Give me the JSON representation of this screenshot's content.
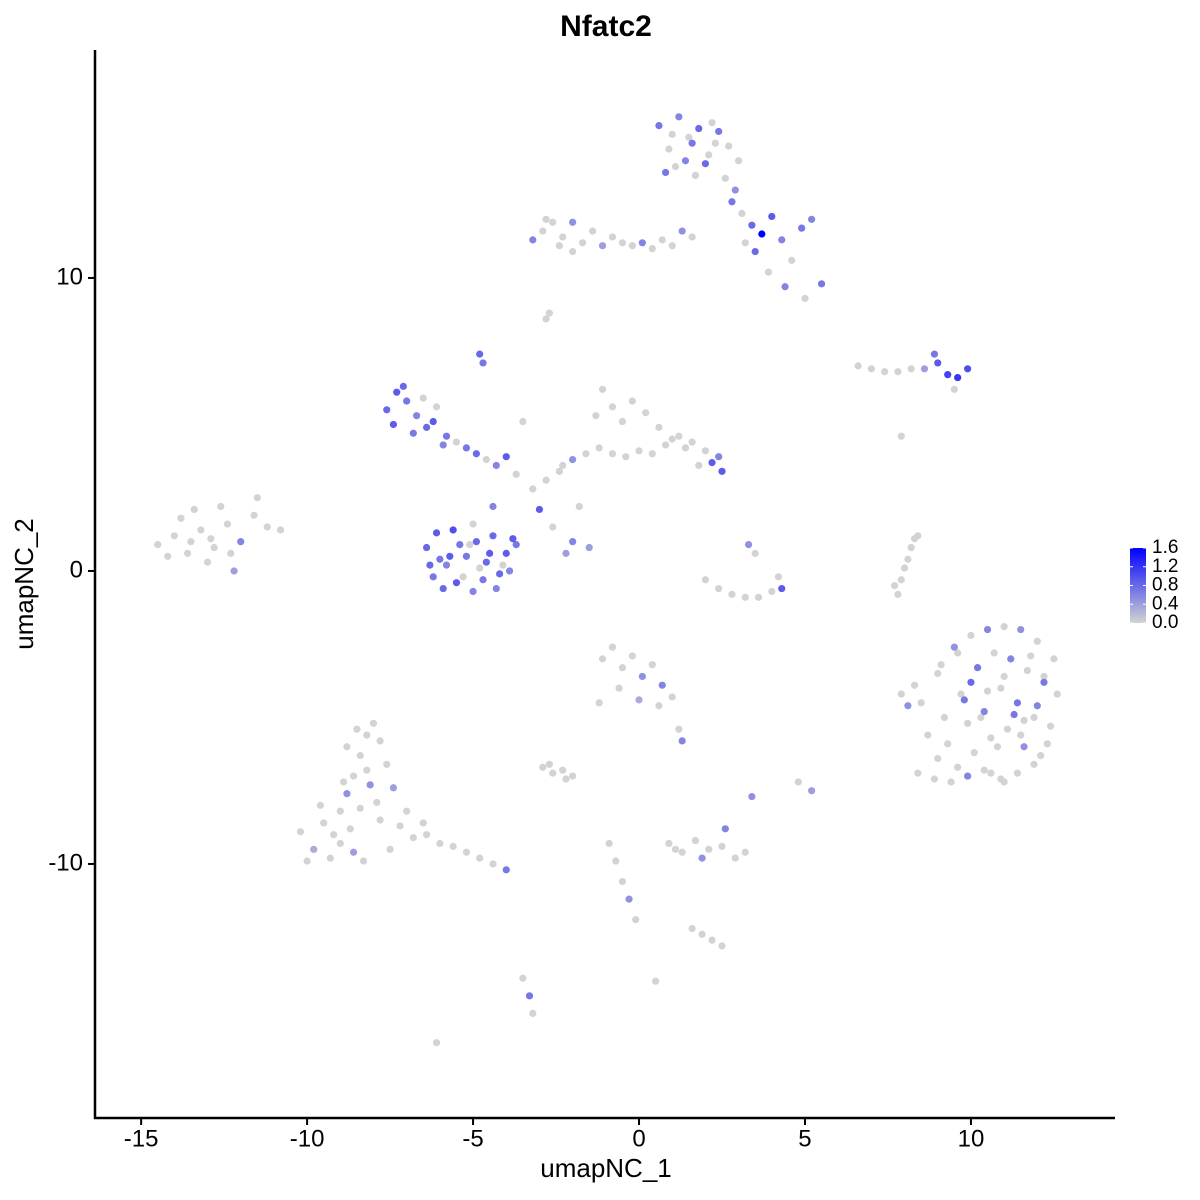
{
  "chart_data": {
    "type": "scatter",
    "title": "Nfatc2",
    "x_label": "umapNC_1",
    "y_label": "umapNC_2",
    "xlim": [
      -16.39,
      14.34
    ],
    "ylim": [
      -18.67,
      17.78
    ],
    "xticks": [
      -15,
      -10,
      -5,
      0,
      5,
      10
    ],
    "yticks": [
      -10,
      0,
      10
    ],
    "color_low": "#d3d3d3",
    "color_high": "#0000ff",
    "colorbar_lim": [
      0,
      1.6
    ],
    "colorbar_ticks": [
      {
        "value": 0,
        "label": "0.0"
      },
      0.4,
      0.8,
      1.2,
      1.6
    ],
    "x": [
      -14.5,
      -14.0,
      -13.6,
      -13.2,
      -12.8,
      -12.4,
      -12.0,
      -11.6,
      -11.2,
      -10.8,
      -14.2,
      -13.8,
      -13.4,
      -13.0,
      -12.6,
      -12.2,
      -13.5,
      -12.9,
      -12.3,
      -11.5,
      -10.2,
      -9.8,
      -9.5,
      -9.2,
      -9.0,
      -8.8,
      -8.6,
      -8.4,
      -8.2,
      -8.0,
      -7.8,
      -7.6,
      -7.4,
      -9.6,
      -9.3,
      -9.0,
      -8.7,
      -8.4,
      -8.1,
      -7.8,
      -8.8,
      -8.5,
      -8.2,
      -7.9,
      -8.9,
      -8.6,
      -8.3,
      -7.2,
      -6.8,
      -6.4,
      -6.0,
      -5.6,
      -5.2,
      -4.8,
      -4.4,
      -4.0,
      -7.5,
      -7.0,
      -6.5,
      -10.0,
      -6.4,
      -6.1,
      -5.8,
      -5.5,
      -5.2,
      -4.9,
      -4.6,
      -4.3,
      -4.0,
      -3.7,
      -6.2,
      -5.9,
      -5.6,
      -5.3,
      -5.0,
      -4.7,
      -4.4,
      -4.1,
      -3.8,
      -6.0,
      -5.4,
      -4.8,
      -4.2,
      -5.7,
      -5.1,
      -4.5,
      -3.9,
      -6.3,
      -4.4,
      -5.0,
      -7.6,
      -7.3,
      -7.0,
      -6.7,
      -6.4,
      -6.1,
      -5.8,
      -5.5,
      -7.4,
      -7.1,
      -6.8,
      -6.5,
      -6.2,
      -5.9,
      -5.2,
      -4.9,
      -4.6,
      -4.3,
      -4.0,
      -3.7,
      -3.2,
      -2.8,
      -2.4,
      -2.0,
      -1.6,
      -1.2,
      -0.8,
      -0.4,
      0.0,
      0.4,
      0.8,
      1.2,
      1.6,
      2.0,
      2.4,
      -1.1,
      -0.8,
      -0.5,
      -0.2,
      0.2,
      0.6,
      1.0,
      1.4,
      1.8,
      2.2,
      2.5,
      -3.0,
      -2.6,
      -2.2,
      -1.8,
      -3.5,
      -2.0,
      -1.5,
      -2.3,
      -1.3,
      0.6,
      0.9,
      1.2,
      1.5,
      1.8,
      2.1,
      2.4,
      2.7,
      3.0,
      0.8,
      1.1,
      1.4,
      1.7,
      2.0,
      2.3,
      2.6,
      2.9,
      1.0,
      1.6,
      2.2,
      2.8,
      3.1,
      3.4,
      3.7,
      4.0,
      4.3,
      4.6,
      4.9,
      5.2,
      3.5,
      3.9,
      4.4,
      5.0,
      5.5,
      3.2,
      -3.2,
      -2.9,
      -2.6,
      -2.3,
      -2.0,
      -1.7,
      -1.4,
      -1.1,
      -0.8,
      -0.5,
      -0.2,
      0.1,
      0.4,
      0.7,
      1.0,
      1.3,
      1.6,
      -2.8,
      -2.4,
      -2.0,
      6.6,
      7.0,
      7.4,
      7.8,
      8.2,
      8.6,
      9.0,
      9.3,
      9.6,
      9.9,
      8.9,
      9.5,
      8.5,
      9.0,
      9.5,
      10.0,
      10.5,
      11.0,
      11.5,
      12.0,
      12.5,
      9.2,
      9.7,
      10.2,
      10.7,
      11.2,
      11.7,
      12.2,
      12.6,
      8.7,
      9.3,
      9.9,
      10.4,
      10.9,
      11.4,
      11.9,
      12.4,
      9.0,
      9.6,
      10.1,
      10.6,
      11.1,
      11.6,
      12.1,
      8.4,
      8.9,
      9.4,
      9.9,
      10.4,
      10.9,
      11.4,
      11.9,
      10.0,
      10.5,
      11.0,
      11.5,
      12.0,
      9.6,
      10.3,
      11.3,
      12.3,
      8.1,
      7.9,
      8.3,
      10.8,
      11.8,
      9.1,
      10.6,
      12.2,
      9.8,
      11.0,
      11.6,
      -1.1,
      -0.8,
      -0.5,
      -0.2,
      0.1,
      0.4,
      0.7,
      1.0,
      -0.6,
      0.0,
      0.6,
      -1.2,
      1.2,
      1.3,
      2.0,
      2.4,
      2.8,
      3.2,
      3.6,
      4.0,
      4.2,
      3.3,
      3.5,
      4.3,
      7.8,
      7.9,
      8.0,
      8.1,
      8.2,
      8.3,
      7.7,
      8.4,
      -2.9,
      -2.6,
      -2.3,
      -2.0,
      -2.7,
      -2.2,
      0.9,
      1.3,
      1.7,
      2.1,
      2.5,
      2.9,
      3.2,
      1.1,
      1.9,
      2.6,
      -0.9,
      -0.7,
      -0.5,
      -0.3,
      -0.1,
      1.6,
      1.9,
      2.2,
      2.5,
      -3.5,
      -3.3,
      -3.2,
      -2.8,
      -2.7,
      -4.8,
      -4.7,
      -6.1,
      0.5,
      4.8,
      5.2,
      3.4,
      7.9
    ],
    "y": [
      0.9,
      1.2,
      0.6,
      1.4,
      0.8,
      1.6,
      1.0,
      1.9,
      1.5,
      1.4,
      0.5,
      1.8,
      2.1,
      0.3,
      2.2,
      0.0,
      1.0,
      1.1,
      0.6,
      2.5,
      -8.9,
      -9.5,
      -8.6,
      -9.0,
      -8.2,
      -7.6,
      -7.0,
      -6.3,
      -5.6,
      -5.2,
      -5.8,
      -6.6,
      -7.4,
      -8.0,
      -9.8,
      -9.3,
      -8.8,
      -8.1,
      -7.3,
      -8.5,
      -6.0,
      -5.4,
      -6.8,
      -7.9,
      -7.2,
      -9.6,
      -9.9,
      -8.7,
      -9.1,
      -9.0,
      -9.3,
      -9.4,
      -9.6,
      -9.8,
      -10.0,
      -10.2,
      -9.5,
      -8.2,
      -8.6,
      -9.9,
      0.8,
      1.3,
      0.2,
      -0.4,
      0.5,
      1.0,
      0.3,
      -0.6,
      0.6,
      0.9,
      -0.2,
      -0.6,
      1.4,
      -0.2,
      -0.7,
      -0.3,
      1.2,
      0.2,
      1.1,
      0.4,
      0.9,
      0.1,
      -0.1,
      0.5,
      0.9,
      0.6,
      0.0,
      0.2,
      2.2,
      1.6,
      5.5,
      6.1,
      5.8,
      5.3,
      4.9,
      5.6,
      4.6,
      4.4,
      5.0,
      6.3,
      4.7,
      5.9,
      5.1,
      4.3,
      4.2,
      4.0,
      3.8,
      3.6,
      3.9,
      3.3,
      2.8,
      3.1,
      3.4,
      3.8,
      4.0,
      4.2,
      4.0,
      3.9,
      4.1,
      4.0,
      4.3,
      4.6,
      4.4,
      4.1,
      3.9,
      6.2,
      5.6,
      5.1,
      5.8,
      5.4,
      4.9,
      4.5,
      4.2,
      3.6,
      3.7,
      3.4,
      2.1,
      1.5,
      0.6,
      2.2,
      5.1,
      1.0,
      0.8,
      3.6,
      5.3,
      15.2,
      14.4,
      15.5,
      14.8,
      15.1,
      14.2,
      15.0,
      14.5,
      14.0,
      13.6,
      13.8,
      14.0,
      13.5,
      13.9,
      14.6,
      13.4,
      13.0,
      14.9,
      14.6,
      15.3,
      12.6,
      12.2,
      11.8,
      11.5,
      12.1,
      11.3,
      10.6,
      11.7,
      12.0,
      10.9,
      10.2,
      9.7,
      9.3,
      9.8,
      11.2,
      11.3,
      11.6,
      11.9,
      11.4,
      11.9,
      11.2,
      11.6,
      11.1,
      11.4,
      11.2,
      11.1,
      11.2,
      11.0,
      11.3,
      11.1,
      11.6,
      11.4,
      12.0,
      11.1,
      10.9,
      7.0,
      6.9,
      6.8,
      6.8,
      6.9,
      6.9,
      7.1,
      6.7,
      6.6,
      6.9,
      7.4,
      6.2,
      -4.5,
      -3.5,
      -2.6,
      -2.2,
      -2.0,
      -1.9,
      -2.0,
      -2.4,
      -3.0,
      -5.0,
      -4.2,
      -3.3,
      -2.8,
      -3.0,
      -3.4,
      -3.8,
      -4.2,
      -5.6,
      -5.9,
      -5.2,
      -4.8,
      -4.0,
      -4.5,
      -5.0,
      -5.3,
      -6.4,
      -6.7,
      -6.2,
      -5.7,
      -5.4,
      -6.0,
      -6.3,
      -6.9,
      -7.1,
      -7.2,
      -7.0,
      -6.8,
      -7.1,
      -6.9,
      -6.6,
      -3.8,
      -4.1,
      -3.6,
      -5.6,
      -4.6,
      -2.8,
      -5.0,
      -4.9,
      -5.9,
      -4.6,
      -4.2,
      -3.9,
      -6.0,
      -2.9,
      -3.2,
      -6.9,
      -3.6,
      -4.4,
      -7.2,
      -5.1,
      -3.0,
      -2.6,
      -3.3,
      -2.9,
      -3.6,
      -3.2,
      -3.9,
      -4.3,
      -4.0,
      -4.4,
      -4.6,
      -4.5,
      -5.4,
      -5.8,
      -0.3,
      -0.6,
      -0.8,
      -0.9,
      -0.9,
      -0.7,
      -0.2,
      0.9,
      0.6,
      -0.6,
      -0.8,
      -0.3,
      0.1,
      0.4,
      0.8,
      1.1,
      -0.5,
      1.2,
      -6.7,
      -6.9,
      -6.8,
      -7.0,
      -6.6,
      -7.1,
      -9.3,
      -9.6,
      -9.2,
      -9.5,
      -9.4,
      -9.8,
      -9.6,
      -9.5,
      -9.8,
      -8.8,
      -9.3,
      -9.9,
      -10.6,
      -11.2,
      -11.9,
      -12.2,
      -12.4,
      -12.6,
      -12.8,
      -13.9,
      -14.5,
      -15.1,
      8.6,
      8.8,
      7.4,
      7.1,
      -16.1,
      -14.0,
      -7.2,
      -7.5,
      -7.7,
      4.6
    ],
    "expression": [
      0,
      0,
      0,
      0,
      0,
      0,
      0.6,
      0,
      0,
      0,
      0,
      0,
      0,
      0,
      0,
      0.4,
      0,
      0,
      0,
      0,
      0,
      0.3,
      0,
      0,
      0,
      0.5,
      0,
      0,
      0,
      0,
      0,
      0,
      0.4,
      0,
      0,
      0,
      0,
      0,
      0.5,
      0,
      0,
      0,
      0,
      0,
      0,
      0.4,
      0,
      0,
      0,
      0,
      0,
      0,
      0,
      0,
      0,
      0.7,
      0,
      0,
      0,
      0,
      0.8,
      0.9,
      0.6,
      0.9,
      0.7,
      0.8,
      0.8,
      0.6,
      0.9,
      0.7,
      0.7,
      0.8,
      1.0,
      0,
      0.6,
      0.7,
      0.8,
      0,
      0.9,
      0.7,
      0.7,
      0,
      0.8,
      0.9,
      0,
      0.9,
      0.6,
      0.8,
      0.6,
      0,
      0.8,
      0.9,
      0.7,
      0.6,
      0.8,
      0,
      0.7,
      0,
      0.9,
      0.8,
      0.7,
      0,
      0.9,
      0.6,
      0.7,
      0.8,
      0,
      0.6,
      0.9,
      0,
      0,
      0,
      0,
      0.5,
      0,
      0,
      0,
      0,
      0,
      0,
      0,
      0,
      0,
      0,
      0.6,
      0,
      0,
      0,
      0,
      0,
      0,
      0,
      0,
      0,
      0.9,
      0.9,
      0.9,
      0,
      0.4,
      0,
      0,
      0.6,
      0.4,
      0,
      0,
      0.7,
      0,
      0.6,
      0,
      0.8,
      0,
      0.7,
      0,
      0,
      0.7,
      0,
      0.6,
      0,
      0.8,
      0,
      0,
      0.5,
      0,
      0.7,
      0,
      0.7,
      0,
      0.8,
      1.6,
      0.9,
      0.6,
      0,
      0.7,
      0.6,
      0.8,
      0,
      0.6,
      0,
      0.7,
      0,
      0.6,
      0,
      0,
      0,
      0.5,
      0,
      0,
      0.4,
      0,
      0,
      0,
      0.6,
      0,
      0,
      0,
      0.5,
      0,
      0,
      0,
      0,
      0,
      0,
      0,
      0,
      0,
      0.4,
      0.9,
      1.1,
      1.2,
      1.0,
      0.7,
      0,
      0,
      0,
      0.5,
      0,
      0.6,
      0,
      0.5,
      0,
      0,
      0,
      0,
      0.7,
      0,
      0.6,
      0,
      0.7,
      0,
      0,
      0,
      0,
      0.6,
      0,
      0.7,
      0,
      0,
      0,
      0,
      0,
      0,
      0,
      0.5,
      0,
      0,
      0,
      0,
      0.6,
      0,
      0,
      0,
      0,
      0.8,
      0,
      0,
      0,
      0.6,
      0,
      0,
      0.7,
      0,
      0.5,
      0,
      0,
      0,
      0,
      0,
      0,
      0,
      0.7,
      0,
      0,
      0,
      0,
      0,
      0,
      0.5,
      0,
      0.6,
      0,
      0,
      0.3,
      0,
      0,
      0,
      0.6,
      0,
      0,
      0,
      0,
      0,
      0,
      0,
      0.5,
      0,
      0.9,
      0,
      0,
      0,
      0,
      0,
      0,
      0,
      0,
      0,
      0,
      0,
      0,
      0,
      0,
      0,
      0,
      0,
      0,
      0,
      0,
      0,
      0,
      0.5,
      0.6,
      0,
      0,
      0,
      0.5,
      0,
      0,
      0,
      0,
      0,
      0,
      0.7,
      0,
      0,
      0,
      0.8,
      0.7,
      0,
      0,
      0,
      0.4,
      0.5,
      0
    ]
  }
}
